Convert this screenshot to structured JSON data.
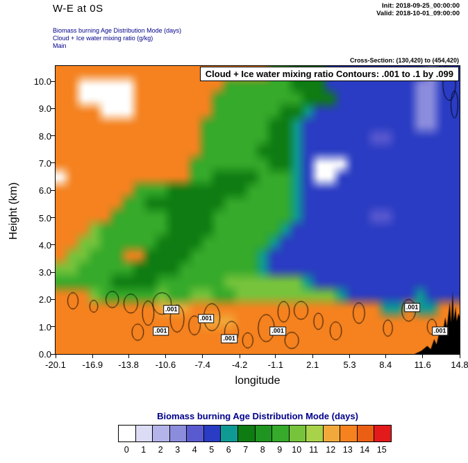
{
  "header": {
    "title": "W-E at 0S",
    "init": "Init: 2018-09-25_00:00:00",
    "valid": "Valid: 2018-10-01_09:00:00",
    "line1": "Biomass burning Age Distribution Mode   (days)",
    "line2": "Cloud + Ice water mixing ratio   (g/kg)",
    "line3": "Main",
    "cross_section": "Cross-Section: (130,420) to (454,420)"
  },
  "plot": {
    "contour_title": "Cloud + Ice water mixing ratio Contours: .001 to .1 by .099",
    "xlabel": "longitude",
    "ylabel": "Height (km)"
  },
  "chart_data": {
    "type": "heatmap",
    "field": "Biomass burning Age Distribution Mode (days)",
    "value_range": [
      0,
      15
    ],
    "x_axis": {
      "label": "longitude",
      "min": -20.1,
      "max": 14.8,
      "tick_values": [
        -20.1,
        -16.9,
        -13.8,
        -10.6,
        -7.4,
        -4.2,
        -1.1,
        2.1,
        5.3,
        8.4,
        11.6,
        14.8
      ],
      "tick_labels": [
        "-20.1",
        "-16.9",
        "-13.8",
        "-10.6",
        "-7.4",
        "-4.2",
        "-1.1",
        "2.1",
        "5.3",
        "8.4",
        "11.6",
        "14.8"
      ]
    },
    "y_axis": {
      "label": "Height (km)",
      "min": 0,
      "max": 10.56,
      "tick_values": [
        0,
        1,
        2,
        3,
        4,
        5,
        6,
        7,
        8,
        9,
        10
      ],
      "tick_labels": [
        "0.0",
        "1.0",
        "2.0",
        "3.0",
        "4.0",
        "5.0",
        "6.0",
        "7.0",
        "8.0",
        "9.0",
        "10.0"
      ]
    },
    "palette": [
      "#ffffff",
      "#dcdcf5",
      "#b4b4ea",
      "#8c8cdd",
      "#5a5ad0",
      "#2a3cc3",
      "#0f9a94",
      "#0e7c12",
      "#1f9420",
      "#36aa2b",
      "#77c43c",
      "#a8d24a",
      "#f2a93b",
      "#f5821f",
      "#ea5f14",
      "#e31a1c"
    ],
    "grid_rows_top_to_bottom": [
      "ddddddddddddddddddd99777555555555355",
      "dd00000dddddddd999999777555555553355",
      "dd00000ddddddd9999999977755555553355",
      "dddd000ddddddd9999997765555555553355",
      "ddddddddddddd99999977655555555553355",
      "ddddddddddddd99999977655555544555555",
      "ddddddddddddd99999777655555555555555",
      "dddddddddddd999999977650005555555555",
      "0ddddddddddd997777999650055555555555",
      "ddddddd99977777779999655555555555555",
      "dddddd997777777999999655555555555555",
      "ddddd9999977779999999655555544555555",
      "ddda99999977779999996555555555555555",
      "ddaa99999777799999965555555555555555",
      "daa999dd7777999999655555555555555555",
      "aa9999977779999999655555555555555555",
      "999997777999999aaaaaaa65555555555555",
      "ddda99999a99aa99aaaaaaaaa65555556555",
      "dddddddddcccddddddddddddddddd66d66dd",
      "dddddddddddddcccdddddddddddddddddddd",
      "dddddddddddddddddddddddddddddddddddd",
      "dddddddddddddddddddddddddddddddddddd"
    ],
    "overlay_contours": {
      "variable": "Cloud + Ice water mixing ratio",
      "levels": ".001 to .1 by .099",
      "label_value": ".001",
      "labels": [
        {
          "lon": -10.1,
          "km": 1.63
        },
        {
          "lon": -11.0,
          "km": 0.84
        },
        {
          "lon": -7.1,
          "km": 1.3
        },
        {
          "lon": -5.1,
          "km": 0.56
        },
        {
          "lon": -0.9,
          "km": 0.85
        },
        {
          "lon": 10.7,
          "km": 1.7
        },
        {
          "lon": 13.1,
          "km": 0.84
        }
      ],
      "blobs": [
        [
          -18.6,
          1.95,
          0.45,
          0.3
        ],
        [
          -16.8,
          1.75,
          0.35,
          0.22
        ],
        [
          -15.2,
          2.0,
          0.55,
          0.3
        ],
        [
          -13.6,
          1.85,
          0.6,
          0.35
        ],
        [
          -12.1,
          1.5,
          0.5,
          0.45
        ],
        [
          -10.9,
          1.85,
          0.8,
          0.4
        ],
        [
          -9.6,
          1.3,
          0.6,
          0.5
        ],
        [
          -8.1,
          1.05,
          0.5,
          0.35
        ],
        [
          -6.6,
          1.35,
          0.7,
          0.5
        ],
        [
          -4.9,
          0.8,
          0.6,
          0.4
        ],
        [
          -3.5,
          0.5,
          0.45,
          0.28
        ],
        [
          -1.9,
          0.95,
          0.7,
          0.5
        ],
        [
          -0.4,
          1.55,
          0.5,
          0.38
        ],
        [
          1.1,
          1.6,
          0.6,
          0.33
        ],
        [
          2.6,
          1.2,
          0.4,
          0.3
        ],
        [
          4.1,
          0.85,
          0.5,
          0.33
        ],
        [
          6.1,
          1.5,
          0.5,
          0.38
        ],
        [
          8.6,
          0.95,
          0.4,
          0.3
        ],
        [
          10.4,
          1.6,
          0.6,
          0.4
        ],
        [
          12.4,
          1.0,
          0.4,
          0.28
        ],
        [
          13.7,
          0.6,
          0.35,
          0.22
        ],
        [
          0.3,
          0.5,
          0.6,
          0.3
        ],
        [
          -13.0,
          0.8,
          0.5,
          0.3
        ]
      ],
      "top_right_blobs": [
        [
          13.9,
          9.9,
          0.55,
          0.6
        ],
        [
          14.35,
          9.15,
          0.3,
          0.5
        ],
        [
          13.35,
          10.35,
          0.35,
          0.28
        ]
      ]
    },
    "terrain": {
      "color": "#000000",
      "points": [
        [
          10.9,
          0
        ],
        [
          11.5,
          0.12
        ],
        [
          12.0,
          0.3
        ],
        [
          12.3,
          0.18
        ],
        [
          12.6,
          0.55
        ],
        [
          12.8,
          0.35
        ],
        [
          13.1,
          0.9
        ],
        [
          13.3,
          0.65
        ],
        [
          13.55,
          1.35
        ],
        [
          13.7,
          1.0
        ],
        [
          13.95,
          1.9
        ],
        [
          14.05,
          1.15
        ],
        [
          14.2,
          2.3
        ],
        [
          14.3,
          1.25
        ],
        [
          14.45,
          1.75
        ],
        [
          14.55,
          1.2
        ],
        [
          14.7,
          1.5
        ],
        [
          14.8,
          1.35
        ],
        [
          14.8,
          0
        ]
      ]
    },
    "colorbar": {
      "title": "Biomass burning Age Distribution Mode  (days)",
      "labels": [
        "0",
        "1",
        "2",
        "3",
        "4",
        "5",
        "6",
        "7",
        "8",
        "9",
        "10",
        "11",
        "12",
        "13",
        "14",
        "15"
      ]
    }
  }
}
